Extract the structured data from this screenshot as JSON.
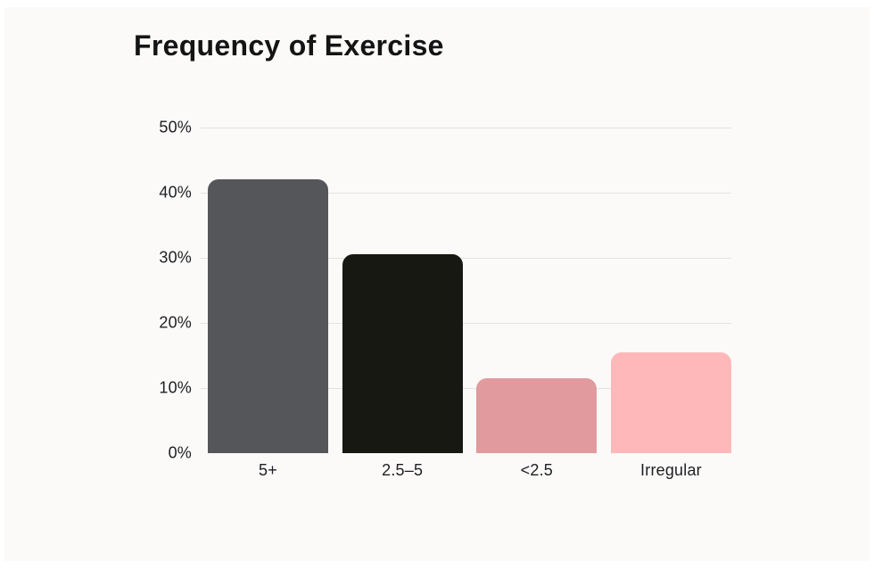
{
  "chart_data": {
    "type": "bar",
    "title": "Frequency of Exercise",
    "categories": [
      "5+",
      "2.5–5",
      "<2.5",
      "Irregular"
    ],
    "values": [
      42,
      30.5,
      11.5,
      15.5
    ],
    "unit": "%",
    "xlabel": "",
    "ylabel": "",
    "ylim": [
      0,
      50
    ],
    "yticks": [
      0,
      10,
      20,
      30,
      40,
      50
    ],
    "ytick_labels": [
      "0%",
      "10%",
      "20%",
      "30%",
      "40%",
      "50%"
    ],
    "grid": "horizontal-only",
    "legend": "none",
    "bar_colors": [
      "#54565a",
      "#181812",
      "#e19a9e",
      "#ffb8ba"
    ]
  },
  "colors": {
    "page_background": "#ffffff",
    "surface_background": "#fbfaf8",
    "gridline": "#e2e2e2",
    "axis_text": "#1e1f23",
    "title_text": "#141414"
  }
}
